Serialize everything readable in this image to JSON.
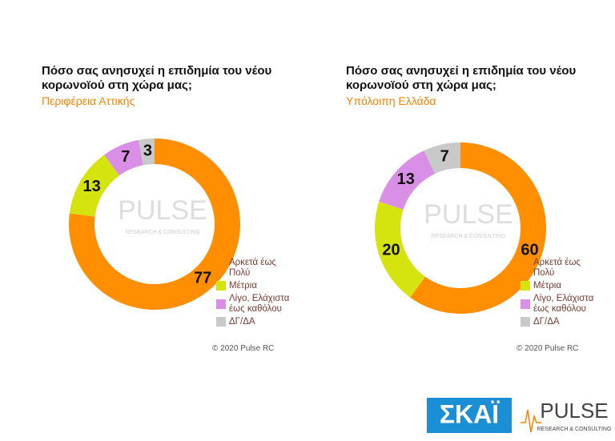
{
  "chart_data": [
    {
      "type": "donut",
      "title": "Πόσο σας ανησυχεί η επιδημία του νέου κορωνοϊού στη χώρα μας;",
      "subtitle": "Περιφέρεια Αττικής",
      "categories": [
        "Αρκετά έως Πολύ",
        "Μέτρια",
        "Λίγο, Ελάχιστα έως καθόλου",
        "ΔΓ/ΔΑ"
      ],
      "values": [
        77,
        13,
        7,
        3
      ],
      "colors": [
        "#ff8f00",
        "#d5e40f",
        "#da8fe6",
        "#c9c9c9"
      ],
      "watermark": "PULSE",
      "watermark_tagline": "RESEARCH & CONSULTING",
      "source": "© 2020 Pulse RC"
    },
    {
      "type": "donut",
      "title": "Πόσο σας ανησυχεί η επιδημία του νέου κορωνοϊού στη χώρα μας;",
      "subtitle": "Υπόλοιπη Ελλάδα",
      "categories": [
        "Αρκετά έως Πολύ",
        "Μέτρια",
        "Λίγο, Ελάχιστα έως καθόλου",
        "ΔΓ/ΔΑ"
      ],
      "values": [
        60,
        20,
        13,
        7
      ],
      "colors": [
        "#ff8f00",
        "#d5e40f",
        "#da8fe6",
        "#c9c9c9"
      ],
      "watermark": "PULSE",
      "watermark_tagline": "RESEARCH & CONSULTING",
      "source": "© 2020 Pulse RC"
    }
  ],
  "logos": {
    "skai": "ΣΚΑΪ",
    "pulse": "PULSE",
    "pulse_tagline": "RESEARCH & CONSULTING"
  }
}
